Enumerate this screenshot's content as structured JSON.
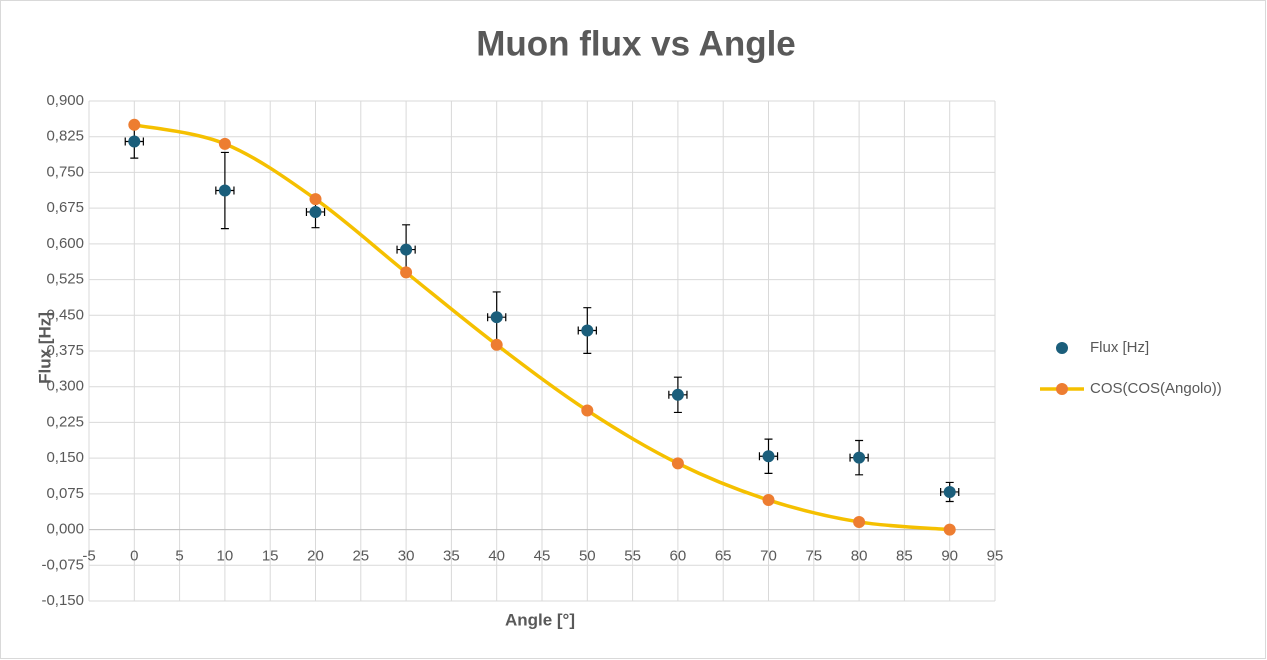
{
  "chart_data": {
    "type": "scatter",
    "title": "Muon flux vs Angle",
    "x_label": "Angle [°]",
    "y_label": "Flux [Hz]",
    "x": [
      0,
      10,
      20,
      30,
      40,
      50,
      60,
      70,
      80,
      90
    ],
    "series": [
      {
        "name": "Flux [Hz]",
        "color": "#1b5e7b",
        "mode": "markers",
        "values": [
          0.815,
          0.712,
          0.667,
          0.588,
          0.446,
          0.418,
          0.283,
          0.154,
          0.151,
          0.079
        ],
        "yerr": [
          0.035,
          0.08,
          0.033,
          0.052,
          0.053,
          0.048,
          0.037,
          0.036,
          0.036,
          0.02
        ],
        "xerr": [
          1,
          1,
          1,
          1,
          1,
          1,
          1,
          1,
          1,
          1
        ]
      },
      {
        "name": "COS(COS(Angolo))",
        "color": "#ed7d31",
        "line_color": "#f5c000",
        "mode": "lines+markers",
        "values": [
          0.85,
          0.81,
          0.694,
          0.54,
          0.388,
          0.25,
          0.139,
          0.062,
          0.016,
          0
        ]
      }
    ],
    "xlim": [
      -5,
      95
    ],
    "xticks": [
      -5,
      0,
      5,
      10,
      15,
      20,
      25,
      30,
      35,
      40,
      45,
      50,
      55,
      60,
      65,
      70,
      75,
      80,
      85,
      90,
      95
    ],
    "ylim": [
      -0.15,
      0.9
    ],
    "yticks": [
      {
        "value": -0.15,
        "label": "-0,150"
      },
      {
        "value": -0.075,
        "label": "-0,075"
      },
      {
        "value": 0,
        "label": "0,000"
      },
      {
        "value": 0.075,
        "label": "0,075"
      },
      {
        "value": 0.15,
        "label": "0,150"
      },
      {
        "value": 0.225,
        "label": "0,225"
      },
      {
        "value": 0.3,
        "label": "0,300"
      },
      {
        "value": 0.375,
        "label": "0,375"
      },
      {
        "value": 0.45,
        "label": "0,450"
      },
      {
        "value": 0.525,
        "label": "0,525"
      },
      {
        "value": 0.6,
        "label": "0,600"
      },
      {
        "value": 0.675,
        "label": "0,675"
      },
      {
        "value": 0.75,
        "label": "0,750"
      },
      {
        "value": 0.825,
        "label": "0,825"
      },
      {
        "value": 0.9,
        "label": "0,900"
      }
    ],
    "grid": true,
    "legend": "right"
  }
}
